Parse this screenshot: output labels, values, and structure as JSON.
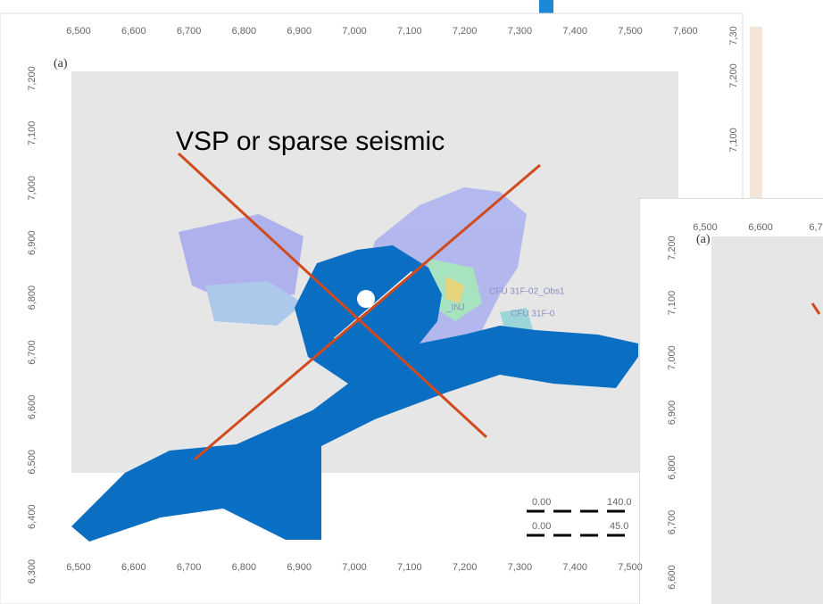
{
  "panel_a": {
    "label": "(a)",
    "x_axis_top": [
      "6,500",
      "6,600",
      "6,700",
      "6,800",
      "6,900",
      "7,000",
      "7,100",
      "7,200",
      "7,300",
      "7,400",
      "7,500",
      "7,600"
    ],
    "x_axis_bottom": [
      "6,500",
      "6,600",
      "6,700",
      "6,800",
      "6,900",
      "7,000",
      "7,100",
      "7,200",
      "7,300",
      "7,400",
      "7,500"
    ],
    "y_axis_left": [
      "7,200",
      "7,100",
      "7,000",
      "6,900",
      "6,800",
      "6,700",
      "6,600",
      "6,500",
      "6,400",
      "6,300"
    ],
    "y_axis_right": [
      "7,30",
      "7,200",
      "7,100"
    ],
    "overlay_title": "VSP or sparse seismic",
    "well_labels": [
      "CFU 31F-02_Obs1",
      "CFU 31F-0",
      "_INJ"
    ],
    "scale_bar": [
      "0.00",
      "140.0",
      "0.00",
      "45.0"
    ]
  },
  "panel_b": {
    "label": "(a)",
    "x_axis_top": [
      "6,500",
      "6,600",
      "6,7"
    ],
    "y_axis_left": [
      "7,200",
      "7,100",
      "7,000",
      "6,900",
      "6,800",
      "6,700",
      "6,600"
    ]
  }
}
